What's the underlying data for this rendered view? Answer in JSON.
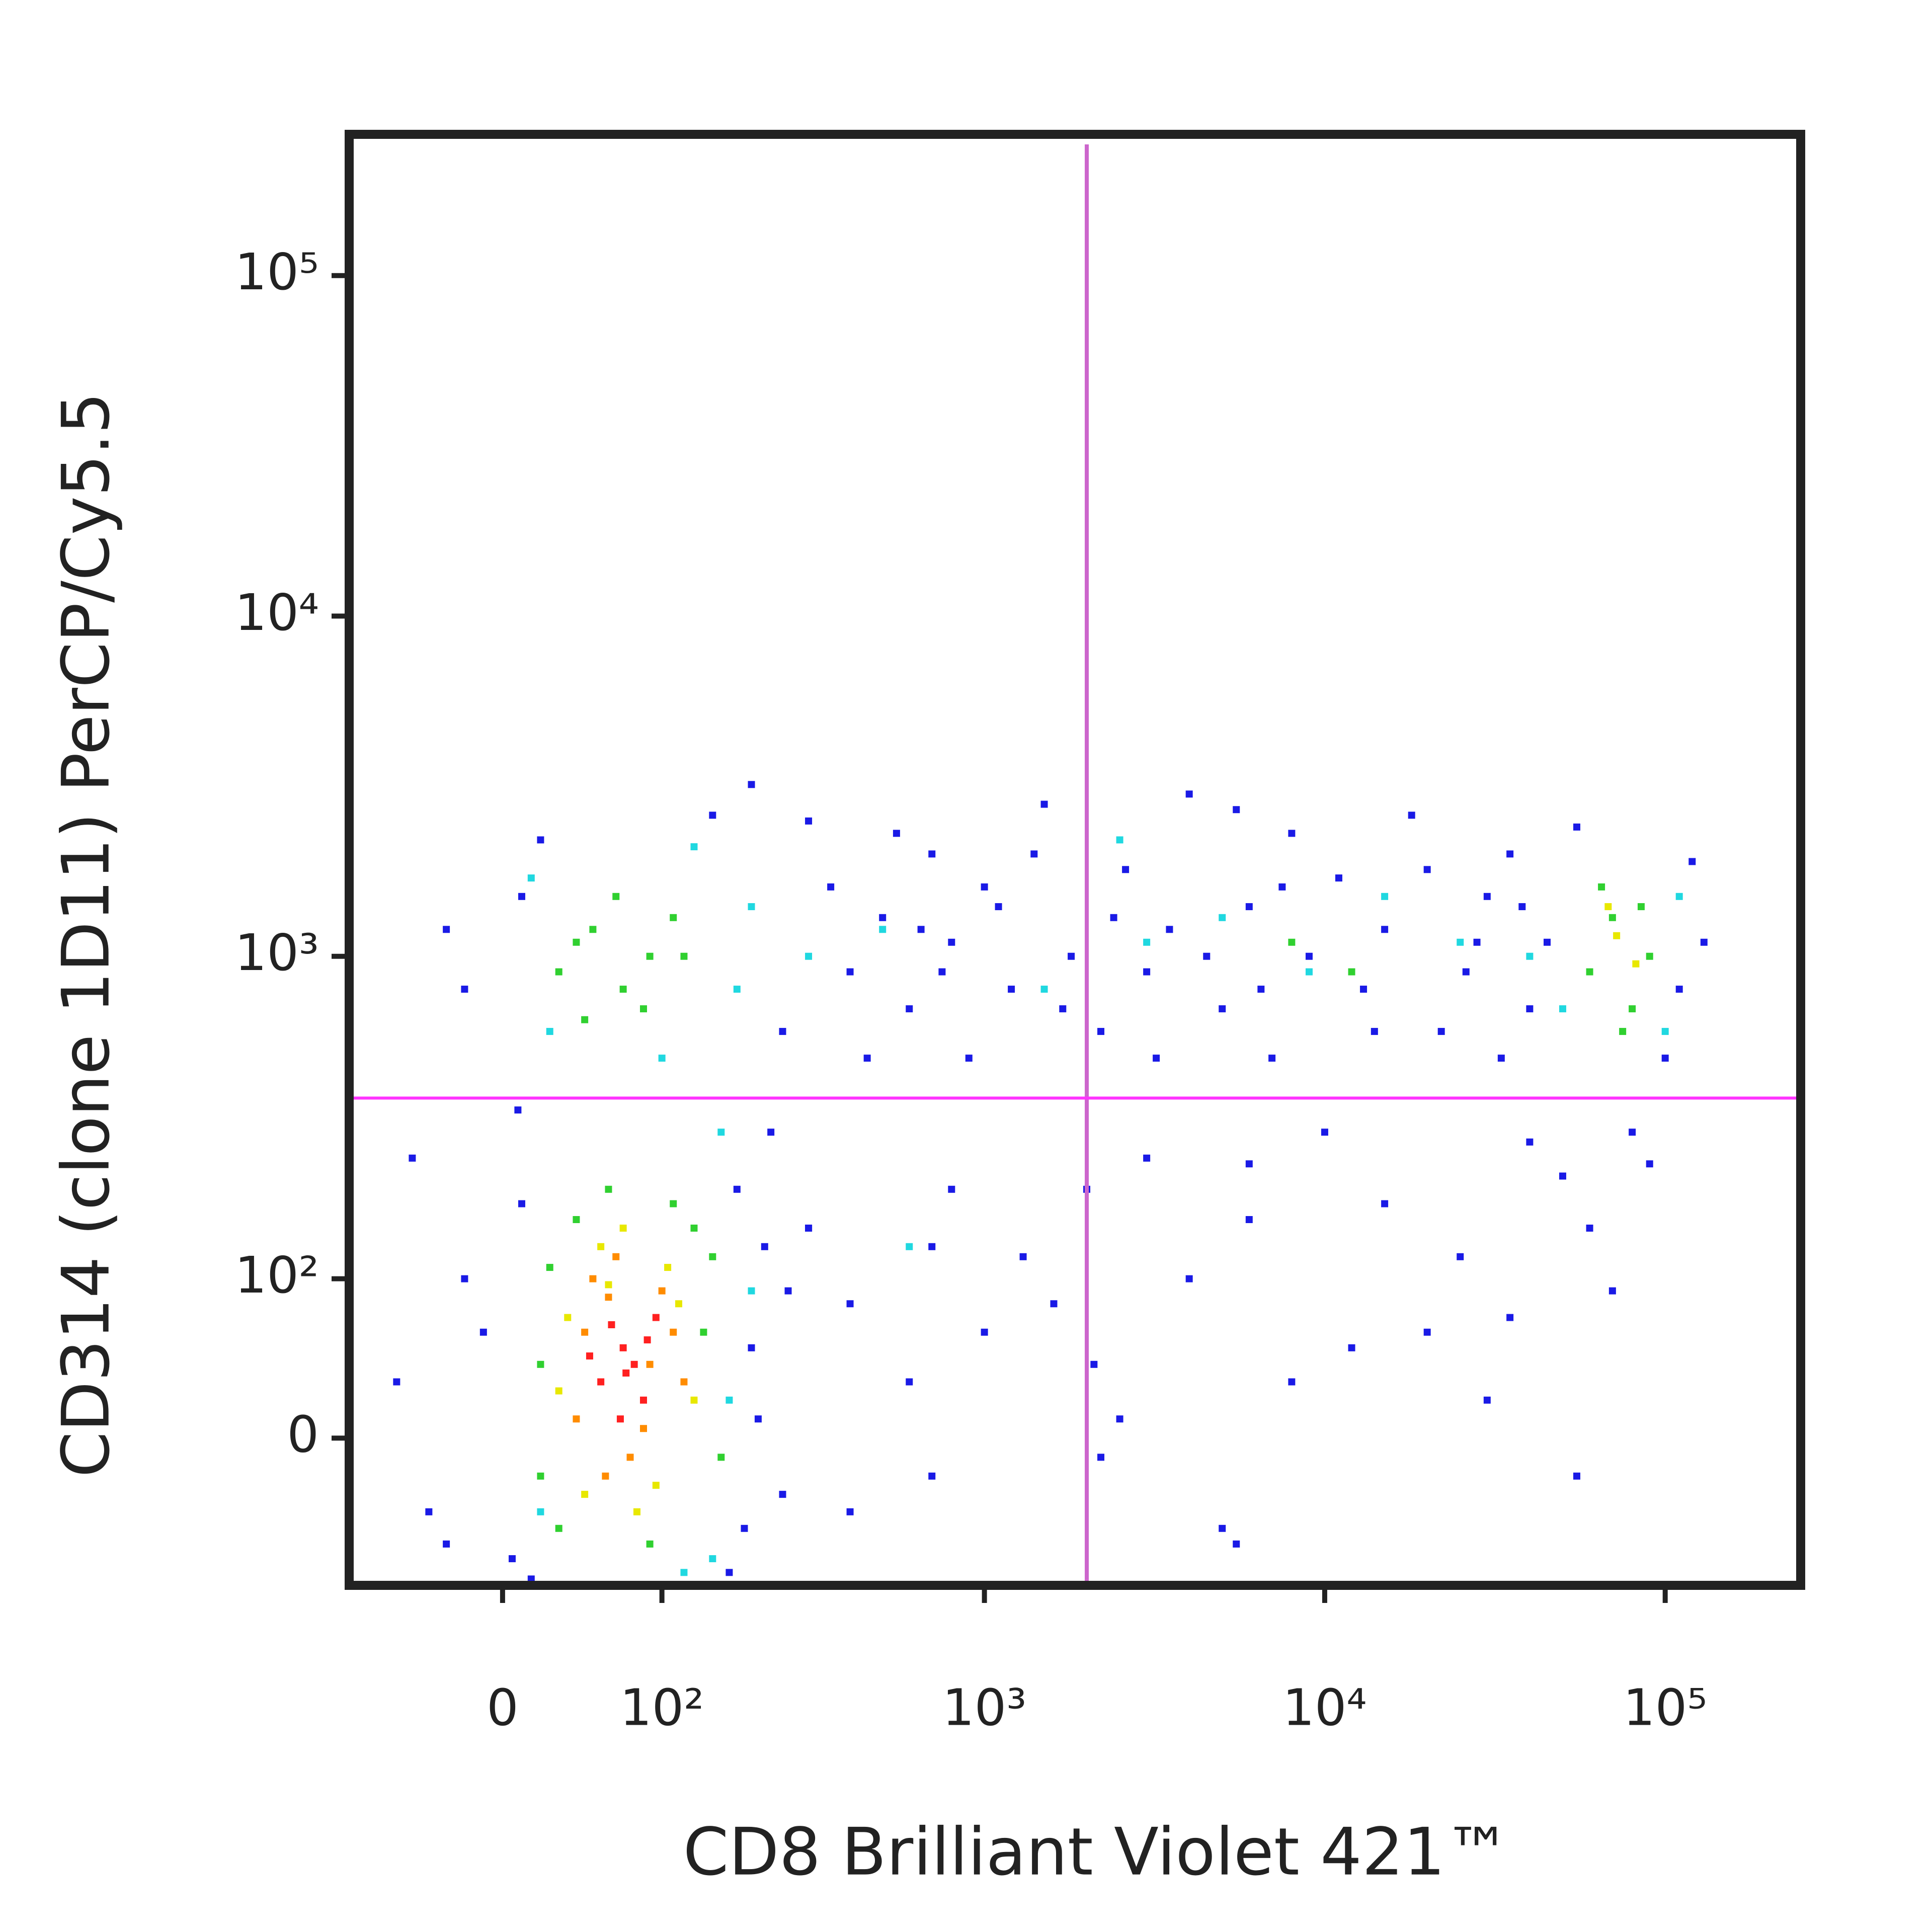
{
  "chart_data": {
    "type": "scatter",
    "xlabel": "CD8 Brilliant Violet 421™",
    "ylabel": "CD314 (clone 1D11) PerCP/Cy5.5",
    "xscale": "biexponential",
    "yscale": "biexponential",
    "xlim": [
      -95,
      250000
    ],
    "ylim": [
      -90,
      260000
    ],
    "xticks": [
      0,
      {
        "value": 100,
        "label": "10²"
      },
      {
        "value": 1000,
        "label": "10³"
      },
      {
        "value": 10000,
        "label": "10⁴"
      },
      {
        "value": 100000,
        "label": "10⁵"
      }
    ],
    "yticks": [
      0,
      {
        "value": 100,
        "label": "10²"
      },
      {
        "value": 1000,
        "label": "10³"
      },
      {
        "value": 10000,
        "label": "10⁴"
      },
      {
        "value": 100000,
        "label": "10⁵"
      }
    ],
    "gates": {
      "x": 2000,
      "y": 380,
      "x_color": "#cc66cc",
      "y_color": "#ff33ff"
    },
    "series": [
      {
        "color": "#1a1ae6",
        "x": [
          -60,
          -40,
          -20,
          5,
          10,
          -50,
          200,
          250,
          220,
          180,
          15,
          -10,
          230,
          300,
          190,
          8,
          -30,
          260,
          170,
          210,
          -20,
          10,
          250,
          300,
          400,
          500,
          600,
          700,
          800,
          900,
          1000,
          1200,
          1500,
          1800,
          2200,
          2600,
          3000,
          3500,
          4000,
          5000,
          6000,
          7000,
          8000,
          9000,
          11000,
          13000,
          15000,
          18000,
          22000,
          26000,
          30000,
          35000,
          40000,
          45000,
          55000,
          100000,
          120000,
          130000,
          150,
          200,
          350,
          450,
          550,
          650,
          750,
          1100,
          1400,
          1700,
          2400,
          3200,
          4500,
          5500,
          6500,
          7500,
          14000,
          20000,
          28000,
          33000,
          38000,
          110000,
          -30,
          20,
          300,
          400,
          600,
          800,
          1000,
          1300,
          2100,
          2500,
          3000,
          4000,
          5000,
          6000,
          8000,
          10000,
          15000,
          20000,
          25000,
          30000,
          40000,
          50000,
          60000,
          70000,
          90000,
          400,
          700,
          1600,
          2200,
          5500,
          12000,
          35000,
          55000,
          80000,
          700,
          2000,
          6000
        ],
        "y": [
          30,
          -40,
          100,
          -70,
          180,
          250,
          50,
          -30,
          130,
          200,
          -85,
          60,
          300,
          150,
          -50,
          350,
          -60,
          90,
          -80,
          10,
          800,
          1500,
          600,
          2500,
          900,
          1300,
          700,
          2000,
          1100,
          500,
          1600,
          800,
          2800,
          1000,
          600,
          1800,
          900,
          1200,
          3000,
          700,
          1400,
          500,
          2300,
          1000,
          1700,
          800,
          1200,
          2600,
          600,
          900,
          1500,
          2000,
          700,
          1100,
          2400,
          500,
          1900,
          1100,
          2600,
          3200,
          1600,
          500,
          2300,
          1200,
          900,
          1400,
          2000,
          700,
          1300,
          500,
          1000,
          2700,
          800,
          1600,
          600,
          1800,
          1100,
          500,
          1400,
          800,
          1200,
          2200,
          150,
          80,
          30,
          200,
          60,
          120,
          40,
          10,
          250,
          100,
          -50,
          160,
          30,
          300,
          180,
          60,
          120,
          20,
          280,
          220,
          150,
          90,
          240,
          -40,
          -20,
          80,
          -10,
          -60,
          50,
          70,
          -20,
          300,
          130,
          200,
          240
        ]
      },
      {
        "color": "#20d8e0",
        "x": [
          15,
          180,
          200,
          25,
          130,
          100,
          160,
          150,
          300,
          500,
          1500,
          3000,
          5000,
          9000,
          15000,
          25000,
          40000,
          50000,
          100000,
          110000,
          20,
          170,
          200,
          120,
          600,
          2500
        ],
        "y": [
          1700,
          800,
          1400,
          600,
          2100,
          500,
          300,
          -70,
          1000,
          1200,
          800,
          1100,
          1300,
          900,
          1500,
          1100,
          1000,
          700,
          600,
          1500,
          -40,
          20,
          90,
          -80,
          130,
          2200
        ]
      },
      {
        "color": "#30d030",
        "x": [
          20,
          25,
          140,
          160,
          30,
          110,
          150,
          20,
          60,
          90,
          130,
          40,
          30,
          50,
          70,
          90,
          110,
          45,
          65,
          85,
          40,
          120,
          60000,
          70000,
          80000,
          90000,
          65000,
          75000,
          85000,
          8000,
          12000
        ],
        "y": [
          40,
          110,
          60,
          -10,
          -50,
          180,
          120,
          -20,
          200,
          -60,
          150,
          160,
          900,
          1200,
          800,
          1000,
          1300,
          650,
          1500,
          700,
          1100,
          1000,
          900,
          1300,
          700,
          1000,
          1600,
          600,
          1400,
          1100,
          900
        ]
      },
      {
        "color": "#e8e800",
        "x": [
          35,
          45,
          115,
          130,
          55,
          95,
          70,
          80,
          105,
          30,
          60,
          72000,
          82000,
          68000
        ],
        "y": [
          70,
          -30,
          80,
          20,
          130,
          -25,
          150,
          -40,
          110,
          25,
          95,
          1150,
          950,
          1400
        ]
      },
      {
        "color": "#ff8c00",
        "x": [
          40,
          60,
          90,
          110,
          50,
          75,
          100,
          65,
          85,
          45,
          120,
          58
        ],
        "y": [
          10,
          85,
          40,
          60,
          100,
          -10,
          90,
          120,
          5,
          60,
          30,
          -20
        ]
      },
      {
        "color": "#ff2020",
        "x": [
          55,
          70,
          85,
          62,
          78,
          95,
          48,
          68,
          88,
          72
        ],
        "y": [
          30,
          50,
          20,
          65,
          40,
          70,
          45,
          10,
          55,
          35
        ]
      }
    ]
  }
}
